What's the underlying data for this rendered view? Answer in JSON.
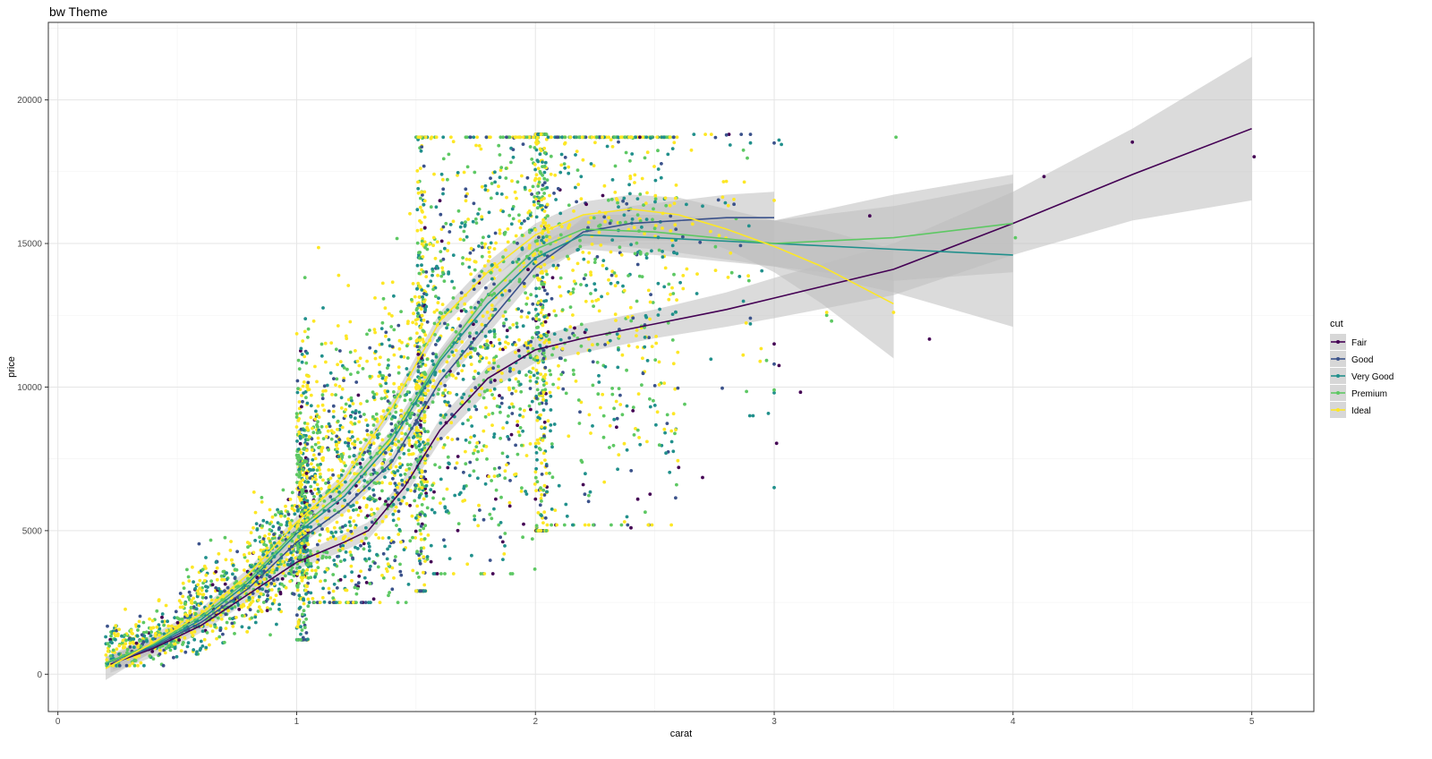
{
  "chart_data": {
    "type": "scatter",
    "title": "bw Theme",
    "xlabel": "carat",
    "ylabel": "price",
    "xlim": [
      -0.04,
      5.26
    ],
    "ylim": [
      -1300,
      22700
    ],
    "x_ticks": [
      0,
      1,
      2,
      3,
      4,
      5
    ],
    "x_tick_labels": [
      "0",
      "1",
      "2",
      "3",
      "4",
      "5"
    ],
    "y_ticks": [
      0,
      5000,
      10000,
      15000,
      20000
    ],
    "y_tick_labels": [
      "0",
      "5000",
      "10000",
      "15000",
      "20000"
    ],
    "grid": true,
    "legend": {
      "title": "cut",
      "placement": "right"
    },
    "ribbon_color": "#bdbdbd",
    "series": [
      {
        "name": "Fair",
        "color": "#440154",
        "smooth": [
          [
            0.22,
            350
          ],
          [
            0.4,
            900
          ],
          [
            0.6,
            1700
          ],
          [
            0.8,
            2800
          ],
          [
            1.0,
            3900
          ],
          [
            1.2,
            4600
          ],
          [
            1.3,
            5000
          ],
          [
            1.45,
            6500
          ],
          [
            1.6,
            8500
          ],
          [
            1.8,
            10300
          ],
          [
            2.0,
            11300
          ],
          [
            2.2,
            11700
          ],
          [
            2.5,
            12200
          ],
          [
            2.8,
            12700
          ],
          [
            3.0,
            13100
          ],
          [
            3.5,
            14100
          ],
          [
            4.0,
            15700
          ],
          [
            4.5,
            17400
          ],
          [
            5.0,
            19000
          ]
        ],
        "band": [
          300,
          300,
          250,
          250,
          250,
          300,
          300,
          350,
          400,
          450,
          450,
          500,
          500,
          600,
          700,
          900,
          1100,
          1600,
          2500
        ],
        "points": [
          [
            4.13,
            17330
          ],
          [
            4.5,
            18530
          ],
          [
            5.01,
            18020
          ],
          [
            3.65,
            11670
          ],
          [
            3.4,
            15960
          ],
          [
            3.11,
            9820
          ],
          [
            3.02,
            10750
          ],
          [
            3.01,
            8040
          ],
          [
            2.7,
            6850
          ],
          [
            2.48,
            6270
          ],
          [
            2.6,
            7200
          ],
          [
            2.2,
            6600
          ],
          [
            2.4,
            5100
          ],
          [
            2.0,
            6100
          ],
          [
            3.0,
            11500
          ]
        ]
      },
      {
        "name": "Good",
        "color": "#3b528b",
        "smooth": [
          [
            0.23,
            400
          ],
          [
            0.4,
            950
          ],
          [
            0.6,
            1800
          ],
          [
            0.8,
            3000
          ],
          [
            1.0,
            4600
          ],
          [
            1.2,
            5800
          ],
          [
            1.4,
            7400
          ],
          [
            1.6,
            10200
          ],
          [
            1.8,
            12200
          ],
          [
            2.0,
            14200
          ],
          [
            2.2,
            15400
          ],
          [
            2.4,
            15700
          ],
          [
            2.6,
            15800
          ],
          [
            2.8,
            15900
          ],
          [
            3.0,
            15900
          ]
        ],
        "band": [
          250,
          200,
          200,
          200,
          200,
          200,
          250,
          300,
          350,
          400,
          500,
          600,
          700,
          800,
          900
        ],
        "points": [
          [
            3.0,
            18500
          ],
          [
            2.8,
            18780
          ],
          [
            3.0,
            10800
          ],
          [
            2.9,
            12400
          ],
          [
            2.5,
            10050
          ]
        ]
      },
      {
        "name": "Very Good",
        "color": "#21908c",
        "smooth": [
          [
            0.2,
            380
          ],
          [
            0.4,
            1000
          ],
          [
            0.6,
            1900
          ],
          [
            0.8,
            3200
          ],
          [
            1.0,
            4900
          ],
          [
            1.2,
            6200
          ],
          [
            1.4,
            8100
          ],
          [
            1.6,
            10900
          ],
          [
            1.8,
            12900
          ],
          [
            2.0,
            14500
          ],
          [
            2.2,
            15300
          ],
          [
            2.5,
            15200
          ],
          [
            3.0,
            15000
          ],
          [
            3.5,
            14800
          ],
          [
            4.0,
            14600
          ]
        ],
        "band": [
          200,
          200,
          200,
          200,
          200,
          200,
          250,
          300,
          350,
          400,
          500,
          600,
          800,
          1500,
          2500
        ],
        "points": [
          [
            3.0,
            6500
          ],
          [
            3.0,
            9800
          ],
          [
            3.02,
            18600
          ],
          [
            2.9,
            12200
          ],
          [
            3.03,
            18450
          ]
        ]
      },
      {
        "name": "Premium",
        "color": "#5dc863",
        "smooth": [
          [
            0.2,
            400
          ],
          [
            0.4,
            1050
          ],
          [
            0.6,
            2000
          ],
          [
            0.8,
            3300
          ],
          [
            1.0,
            5000
          ],
          [
            1.2,
            6400
          ],
          [
            1.4,
            8300
          ],
          [
            1.6,
            11000
          ],
          [
            1.8,
            13200
          ],
          [
            2.0,
            14800
          ],
          [
            2.2,
            15500
          ],
          [
            2.5,
            15400
          ],
          [
            3.0,
            15000
          ],
          [
            3.5,
            15200
          ],
          [
            4.0,
            15700
          ]
        ],
        "band": [
          200,
          200,
          200,
          200,
          200,
          200,
          250,
          300,
          350,
          400,
          500,
          600,
          800,
          1500,
          1700
        ],
        "points": [
          [
            3.51,
            18700
          ],
          [
            3.24,
            12300
          ],
          [
            4.01,
            15200
          ],
          [
            3.0,
            9900
          ],
          [
            3.22,
            12500
          ]
        ]
      },
      {
        "name": "Ideal",
        "color": "#fde725",
        "smooth": [
          [
            0.2,
            200
          ],
          [
            0.4,
            1100
          ],
          [
            0.6,
            2100
          ],
          [
            0.8,
            3500
          ],
          [
            1.0,
            5300
          ],
          [
            1.2,
            6800
          ],
          [
            1.4,
            9300
          ],
          [
            1.6,
            12300
          ],
          [
            1.8,
            14000
          ],
          [
            2.0,
            15300
          ],
          [
            2.2,
            16000
          ],
          [
            2.4,
            16200
          ],
          [
            2.6,
            16000
          ],
          [
            2.8,
            15500
          ],
          [
            3.0,
            14900
          ],
          [
            3.2,
            14200
          ],
          [
            3.5,
            12900
          ]
        ],
        "band": [
          400,
          300,
          200,
          200,
          200,
          200,
          250,
          300,
          350,
          400,
          450,
          500,
          600,
          700,
          900,
          1300,
          1900
        ],
        "points": [
          [
            3.5,
            12600
          ],
          [
            3.0,
            16500
          ],
          [
            3.22,
            12600
          ]
        ]
      }
    ],
    "clusters": [
      {
        "x": [
          0.2,
          0.5
        ],
        "y": [
          300,
          2800
        ],
        "n": 260,
        "a": 2.6,
        "lo": 300,
        "hi": 3500
      },
      {
        "x": [
          0.5,
          0.8
        ],
        "y": [
          700,
          4800
        ],
        "n": 340,
        "a": 2.6,
        "lo": 700,
        "hi": 6600
      },
      {
        "x": [
          0.8,
          1.0
        ],
        "y": [
          1400,
          6200
        ],
        "n": 320,
        "a": 2.6,
        "lo": 1100,
        "hi": 9500
      },
      {
        "x": [
          1.0,
          1.05
        ],
        "y": [
          2200,
          10500
        ],
        "n": 420,
        "a": 1.6,
        "lo": 1200,
        "hi": 16500
      },
      {
        "x": [
          1.05,
          1.5
        ],
        "y": [
          2800,
          11000
        ],
        "n": 900,
        "a": 1.6,
        "lo": 2500,
        "hi": 18500
      },
      {
        "x": [
          1.5,
          1.54
        ],
        "y": [
          3500,
          15500
        ],
        "n": 360,
        "a": 1.3,
        "lo": 2900,
        "hi": 18700
      },
      {
        "x": [
          1.54,
          2.0
        ],
        "y": [
          5500,
          16500
        ],
        "n": 820,
        "a": 1.4,
        "lo": 3500,
        "hi": 18700
      },
      {
        "x": [
          2.0,
          2.05
        ],
        "y": [
          6500,
          17800
        ],
        "n": 420,
        "a": 1.0,
        "lo": 5000,
        "hi": 18800
      },
      {
        "x": [
          2.05,
          2.6
        ],
        "y": [
          8500,
          17500
        ],
        "n": 620,
        "a": 1.0,
        "lo": 5200,
        "hi": 18700
      },
      {
        "x": [
          2.6,
          3.0
        ],
        "y": [
          11000,
          17000
        ],
        "n": 60,
        "a": 1.0,
        "lo": 9000,
        "hi": 18800
      }
    ]
  }
}
